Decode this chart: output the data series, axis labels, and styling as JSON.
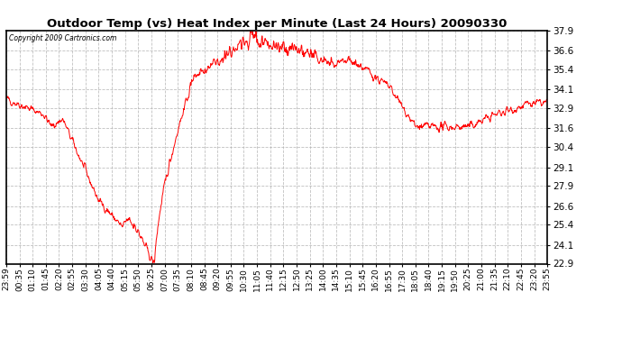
{
  "title": "Outdoor Temp (vs) Heat Index per Minute (Last 24 Hours) 20090330",
  "copyright": "Copyright 2009 Cartronics.com",
  "line_color": "#ff0000",
  "bg_color": "#ffffff",
  "grid_color": "#b0b0b0",
  "yticks": [
    22.9,
    24.1,
    25.4,
    26.6,
    27.9,
    29.1,
    30.4,
    31.6,
    32.9,
    34.1,
    35.4,
    36.6,
    37.9
  ],
  "ymin": 22.9,
  "ymax": 37.9,
  "xtick_labels": [
    "23:59",
    "00:35",
    "01:10",
    "01:45",
    "02:20",
    "02:55",
    "03:30",
    "04:05",
    "04:40",
    "05:15",
    "05:50",
    "06:25",
    "07:00",
    "07:35",
    "08:10",
    "08:45",
    "09:20",
    "09:55",
    "10:30",
    "11:05",
    "11:40",
    "12:15",
    "12:50",
    "13:25",
    "14:00",
    "14:35",
    "15:10",
    "15:45",
    "16:20",
    "16:55",
    "17:30",
    "18:05",
    "18:40",
    "19:15",
    "19:50",
    "20:25",
    "21:00",
    "21:35",
    "22:10",
    "22:45",
    "23:20",
    "23:55"
  ]
}
